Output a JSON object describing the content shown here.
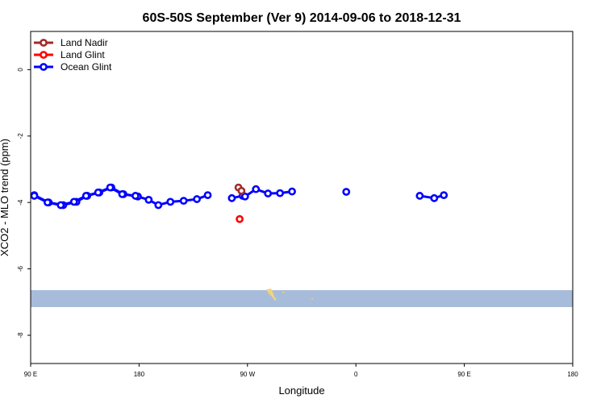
{
  "chart_data": {
    "type": "line",
    "title": "60S-50S September (Ver 9)   2014-09-06 to 2018-12-31",
    "xlabel": "Longitude",
    "ylabel": "XCO2 - MLO trend (ppm)",
    "x_tick_labels": [
      "90 E",
      "180",
      "90 W",
      "0",
      "90 E",
      "180"
    ],
    "y_tick_labels": [
      "0",
      "-2",
      "-4",
      "-6",
      "-8"
    ],
    "y_ticks": [
      0,
      -2,
      -4,
      -6,
      -8
    ],
    "ylim": [
      -8.85,
      1.15
    ],
    "legend_position": "top-left",
    "grid": false,
    "map_strip": {
      "lat_range": "60S-50S",
      "ocean_color": "#a7bcda",
      "land_color": "#f4d37b"
    },
    "series": [
      {
        "name": "Land Nadir",
        "color": "#a52a2a",
        "segments": [
          [
            [
              -97.5,
              -3.55
            ],
            [
              -95,
              -3.65
            ]
          ]
        ]
      },
      {
        "name": "Land Glint",
        "color": "#ff0000",
        "segments": [
          [
            [
              -96.5,
              -4.5
            ]
          ]
        ]
      },
      {
        "name": "Ocean Glint",
        "color": "#0000ff",
        "segments": [
          [
            [
              93,
              -3.78
            ],
            [
              105,
              -4.0
            ],
            [
              117,
              -4.08
            ],
            [
              128,
              -3.98
            ],
            [
              137,
              -3.8
            ],
            [
              147,
              -3.7
            ],
            [
              157,
              -3.55
            ],
            [
              167,
              -3.75
            ],
            [
              179,
              -3.82
            ],
            [
              188,
              -3.92
            ],
            [
              196,
              -4.08
            ],
            [
              206,
              -3.98
            ],
            [
              217,
              -3.95
            ],
            [
              228,
              -3.9
            ],
            [
              237,
              -3.78
            ]
          ],
          [
            [
              257,
              -3.87
            ],
            [
              266,
              -3.8
            ]
          ],
          [
            [
              -92,
              -3.82
            ],
            [
              -83,
              -3.6
            ],
            [
              -73,
              -3.73
            ],
            [
              -63,
              -3.72
            ],
            [
              -53,
              -3.67
            ]
          ],
          [
            [
              -8,
              -3.68
            ]
          ],
          [
            [
              53,
              -3.8
            ],
            [
              65,
              -3.87
            ],
            [
              73,
              -3.78
            ]
          ],
          [
            [
              93,
              -3.8
            ],
            [
              104,
              -4.0
            ],
            [
              115,
              -4.08
            ],
            [
              126,
              -3.98
            ],
            [
              136,
              -3.8
            ],
            [
              146,
              -3.7
            ],
            [
              156,
              -3.55
            ],
            [
              166,
              -3.75
            ],
            [
              177,
              -3.8
            ]
          ]
        ]
      }
    ]
  }
}
